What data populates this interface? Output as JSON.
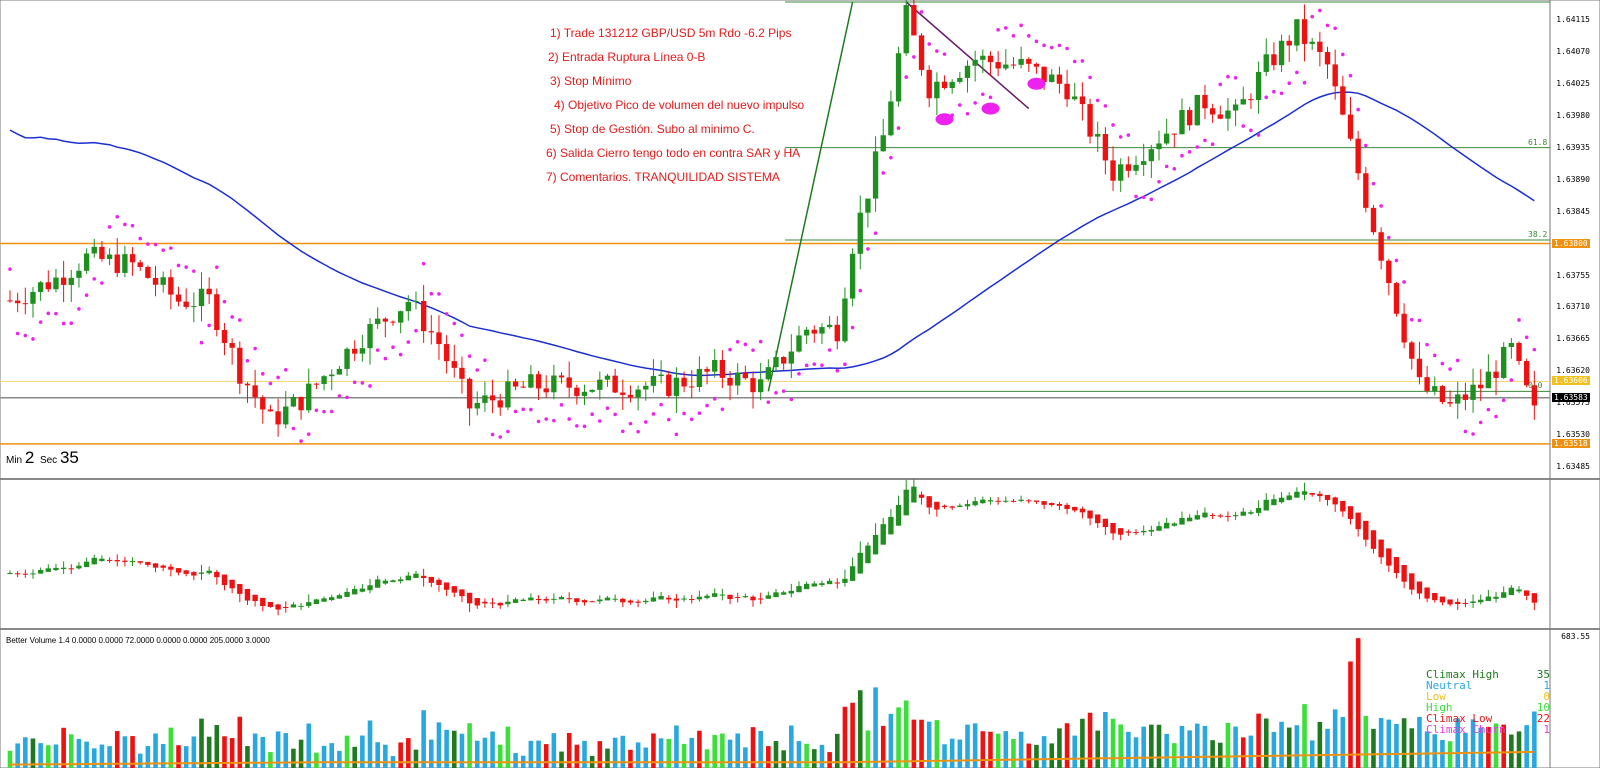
{
  "annotations": [
    "1) Trade 131212 GBP/USD 5m Rdo -6.2 Pips",
    "2) Entrada Ruptura Línea 0-B",
    "3) Stop Mínimo",
    "4) Objetivo Pico de volumen del nuevo impulso",
    "5) Stop de Gestión. Subo al minimo C.",
    "6) Salida Cierro tengo  todo en contra SAR y HA",
    "7) Comentarios. TRANQUILIDAD SISTEMA"
  ],
  "timer": {
    "min_label": "Min",
    "min_value": "2",
    "sec_label": "Sec",
    "sec_value": "35"
  },
  "price_axis": [
    "1.64115",
    "1.64070",
    "1.64025",
    "1.63980",
    "1.63935",
    "1.63890",
    "1.63845",
    "1.63755",
    "1.63710",
    "1.63665",
    "1.63620",
    "1.63575",
    "1.63530",
    "1.63485"
  ],
  "price_tags": [
    {
      "text": "1.63800",
      "price": 1.638,
      "color": "#f0900f"
    },
    {
      "text": "1.63606",
      "price": 1.63606,
      "color": "#f0c020"
    },
    {
      "text": "1.63583",
      "price": 1.63583,
      "color": "#000000"
    },
    {
      "text": "1.63518",
      "price": 1.63518,
      "color": "#f0900f"
    }
  ],
  "fib_labels": [
    {
      "text": "61.8",
      "price": 1.63935
    },
    {
      "text": "38.2",
      "price": 1.63805
    },
    {
      "text": "0.0",
      "price": 1.63592
    }
  ],
  "volume_title": "Better Volume 1.4 0.0000 0.0000 72.0000 0.0000 0.0000 205.0000 3.0000",
  "volume_axis_max": "683.55",
  "legend": [
    {
      "label": "Climax High",
      "value": "35",
      "color": "#1f7a1f"
    },
    {
      "label": "Neutral",
      "value": "1",
      "color": "#29a8e0"
    },
    {
      "label": "Low",
      "value": "0",
      "color": "#f0c020"
    },
    {
      "label": "High",
      "value": "10",
      "color": "#3adf3a"
    },
    {
      "label": "Climax Low",
      "value": "22",
      "color": "#e21b1b"
    },
    {
      "label": "Climax Churn",
      "value": "1",
      "color": "#e040e0"
    }
  ],
  "colors": {
    "bull": "#1f8f1f",
    "bear": "#ee1111",
    "sar": "#ee22ee",
    "ma": "#1b2fd0",
    "hline": "#f0900f",
    "fib": "#3a8a3a",
    "vol": "#29a8e0",
    "volma": "#f0900f"
  },
  "chart_data": {
    "type": "candlestick",
    "symbol": "GBP/USD",
    "timeframe": "5m",
    "price_range": [
      1.6347,
      1.6414
    ],
    "hlines": [
      1.638,
      1.63606,
      1.63583,
      1.63518
    ],
    "fib_levels": {
      "0.0": 1.63592,
      "38.2": 1.63805,
      "61.8": 1.63935,
      "100": 1.6414
    },
    "anchors": [
      {
        "i": 0,
        "p": 1.6372
      },
      {
        "i": 6,
        "p": 1.6375
      },
      {
        "i": 10,
        "p": 1.6378
      },
      {
        "i": 16,
        "p": 1.6377
      },
      {
        "i": 22,
        "p": 1.6372
      },
      {
        "i": 26,
        "p": 1.6372
      },
      {
        "i": 30,
        "p": 1.6362
      },
      {
        "i": 34,
        "p": 1.6355
      },
      {
        "i": 38,
        "p": 1.6358
      },
      {
        "i": 46,
        "p": 1.6367
      },
      {
        "i": 52,
        "p": 1.6372
      },
      {
        "i": 56,
        "p": 1.6366
      },
      {
        "i": 60,
        "p": 1.6357
      },
      {
        "i": 68,
        "p": 1.636
      },
      {
        "i": 78,
        "p": 1.636
      },
      {
        "i": 86,
        "p": 1.636
      },
      {
        "i": 92,
        "p": 1.6362
      },
      {
        "i": 98,
        "p": 1.636
      },
      {
        "i": 104,
        "p": 1.6368
      },
      {
        "i": 108,
        "p": 1.6368
      },
      {
        "i": 110,
        "p": 1.638
      },
      {
        "i": 114,
        "p": 1.6395
      },
      {
        "i": 117,
        "p": 1.6412
      },
      {
        "i": 120,
        "p": 1.6402
      },
      {
        "i": 126,
        "p": 1.6406
      },
      {
        "i": 132,
        "p": 1.6405
      },
      {
        "i": 138,
        "p": 1.6402
      },
      {
        "i": 144,
        "p": 1.639
      },
      {
        "i": 150,
        "p": 1.6395
      },
      {
        "i": 156,
        "p": 1.64
      },
      {
        "i": 160,
        "p": 1.6398
      },
      {
        "i": 164,
        "p": 1.6405
      },
      {
        "i": 168,
        "p": 1.641
      },
      {
        "i": 172,
        "p": 1.6405
      },
      {
        "i": 176,
        "p": 1.639
      },
      {
        "i": 180,
        "p": 1.6375
      },
      {
        "i": 184,
        "p": 1.636
      },
      {
        "i": 188,
        "p": 1.6357
      },
      {
        "i": 192,
        "p": 1.636
      },
      {
        "i": 196,
        "p": 1.6365
      },
      {
        "i": 199,
        "p": 1.6356
      }
    ],
    "bars": 200,
    "volume_max": 683.55
  }
}
